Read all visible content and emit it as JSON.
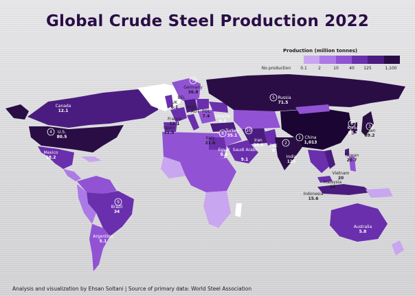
{
  "title": "Global Crude Steel Production 2022",
  "legend": {
    "title": "Production (million tonnes)",
    "items": [
      "No production",
      "0.1",
      "2",
      "10",
      "40",
      "125",
      "1,100"
    ],
    "colors": [
      "#ffffff",
      "#c9a6f0",
      "#ac7ae6",
      "#9153d4",
      "#6a2fad",
      "#4b1c7f",
      "#2a0d45"
    ]
  },
  "countries": [
    {
      "name": "Canada",
      "value": "12.1"
    },
    {
      "name": "Germany",
      "value": "36.8",
      "rank": "7"
    },
    {
      "name": "Russia",
      "value": "71.5",
      "rank": "5"
    },
    {
      "name": "UK",
      "value": "6.1"
    },
    {
      "name": "BEL",
      "value": ""
    },
    {
      "name": "NLD",
      "value": ""
    },
    {
      "name": "AUT",
      "value": ""
    },
    {
      "name": "POL",
      "value": "7.4"
    },
    {
      "name": "Ukraine",
      "value": "6.3"
    },
    {
      "name": "France",
      "value": "12.1"
    },
    {
      "name": "U.S.",
      "value": "80.5",
      "rank": "4"
    },
    {
      "name": "Spain",
      "value": "11.5"
    },
    {
      "name": "Italy",
      "value": "21.6"
    },
    {
      "name": "Turkey",
      "value": "35.1",
      "rank": "8"
    },
    {
      "name": "China",
      "value": "1,013",
      "rank": "1"
    },
    {
      "name": "Korea",
      "value": "65.9",
      "rank": "6"
    },
    {
      "name": "Japan",
      "value": "89.2",
      "rank": "3"
    },
    {
      "name": "Mexico",
      "value": "18.2"
    },
    {
      "name": "Egypt",
      "value": "9.8"
    },
    {
      "name": "Iran",
      "value": "30.6",
      "rank": "10"
    },
    {
      "name": "PAK",
      "value": "6"
    },
    {
      "name": "Saudi Arabi",
      "value": "9.1"
    },
    {
      "name": "India",
      "value": "125",
      "rank": "2"
    },
    {
      "name": "Taiwan",
      "value": "20.7"
    },
    {
      "name": "Vietnam",
      "value": "20"
    },
    {
      "name": "Malaysia",
      "value": "10"
    },
    {
      "name": "Indonesia",
      "value": "15.6"
    },
    {
      "name": "Brazil",
      "value": "34",
      "rank": "9"
    },
    {
      "name": "Argentina",
      "value": "5.1"
    },
    {
      "name": "Australia",
      "value": "5.8"
    }
  ],
  "footer": "Analysis and visualization by Ehsan Soltani | Source of primary data: World Steel Association"
}
